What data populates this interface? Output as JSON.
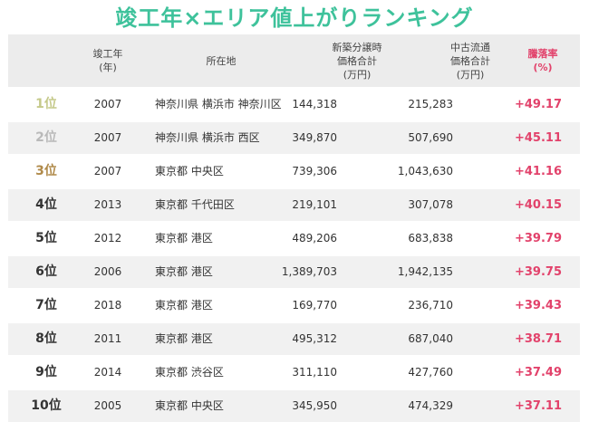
{
  "title": "竣工年×エリア値上がりランキング",
  "headers": {
    "year": [
      "竣工年",
      "(年)"
    ],
    "location": [
      "所在地"
    ],
    "new_price": [
      "新築分譲時",
      "価格合計",
      "(万円)"
    ],
    "used_price": [
      "中古流通",
      "価格合計",
      "(万円)"
    ],
    "rate": [
      "騰落率",
      "(%)"
    ]
  },
  "colors": {
    "title": "#3ec29b",
    "rate": "#e2426b",
    "rank1": "#c5c98a",
    "rank2": "#b9b9b9",
    "rank3": "#b08a4a",
    "rank_default": "#333333"
  },
  "rows": [
    {
      "rank": "1位",
      "year": "2007",
      "location": "神奈川県 横浜市 神奈川区",
      "new_price": "144,318",
      "used_price": "215,283",
      "rate": "+49.17"
    },
    {
      "rank": "2位",
      "year": "2007",
      "location": "神奈川県 横浜市 西区",
      "new_price": "349,870",
      "used_price": "507,690",
      "rate": "+45.11"
    },
    {
      "rank": "3位",
      "year": "2007",
      "location": "東京都 中央区",
      "new_price": "739,306",
      "used_price": "1,043,630",
      "rate": "+41.16"
    },
    {
      "rank": "4位",
      "year": "2013",
      "location": "東京都 千代田区",
      "new_price": "219,101",
      "used_price": "307,078",
      "rate": "+40.15"
    },
    {
      "rank": "5位",
      "year": "2012",
      "location": "東京都 港区",
      "new_price": "489,206",
      "used_price": "683,838",
      "rate": "+39.79"
    },
    {
      "rank": "6位",
      "year": "2006",
      "location": "東京都 港区",
      "new_price": "1,389,703",
      "used_price": "1,942,135",
      "rate": "+39.75"
    },
    {
      "rank": "7位",
      "year": "2018",
      "location": "東京都 港区",
      "new_price": "169,770",
      "used_price": "236,710",
      "rate": "+39.43"
    },
    {
      "rank": "8位",
      "year": "2011",
      "location": "東京都 港区",
      "new_price": "495,312",
      "used_price": "687,040",
      "rate": "+38.71"
    },
    {
      "rank": "9位",
      "year": "2014",
      "location": "東京都 渋谷区",
      "new_price": "311,110",
      "used_price": "427,760",
      "rate": "+37.49"
    },
    {
      "rank": "10位",
      "year": "2005",
      "location": "東京都 中央区",
      "new_price": "345,950",
      "used_price": "474,329",
      "rate": "+37.11"
    }
  ]
}
